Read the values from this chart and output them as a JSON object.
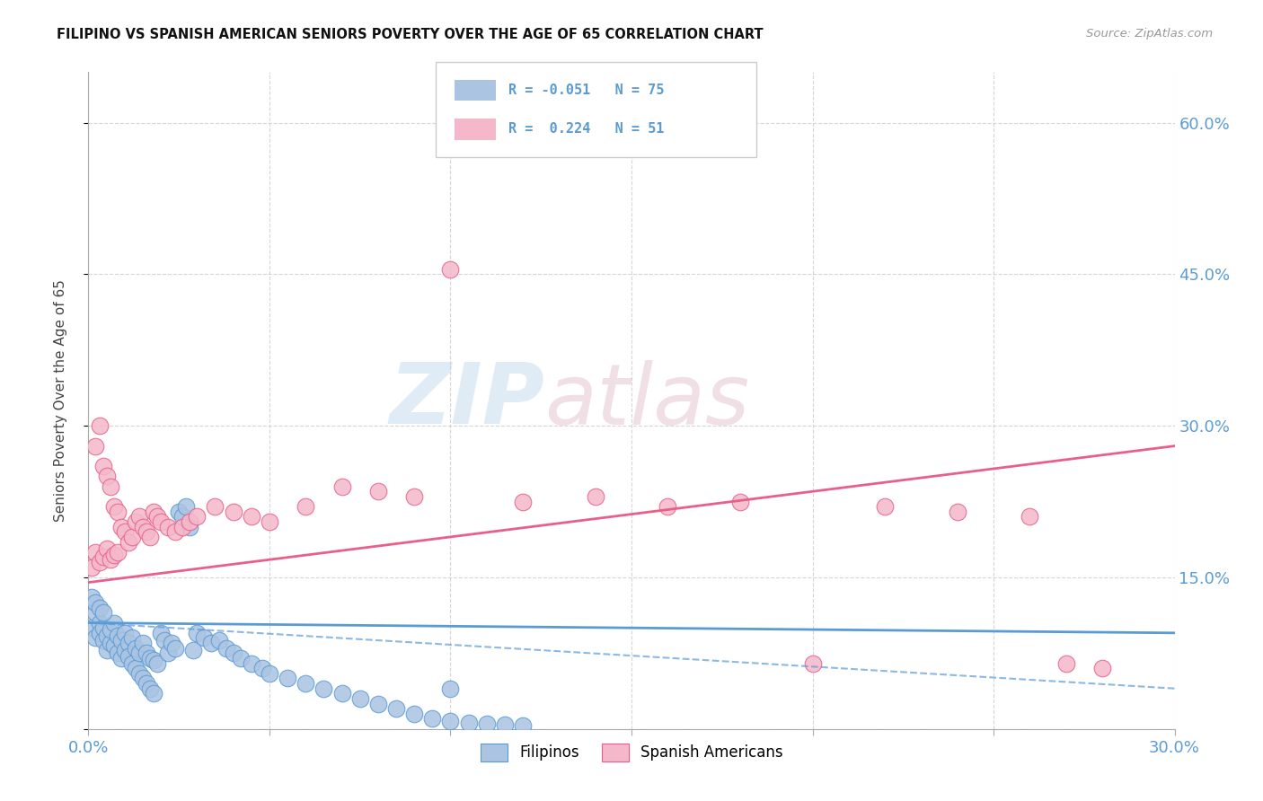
{
  "title": "FILIPINO VS SPANISH AMERICAN SENIORS POVERTY OVER THE AGE OF 65 CORRELATION CHART",
  "source": "Source: ZipAtlas.com",
  "ylabel": "Seniors Poverty Over the Age of 65",
  "xlim": [
    0.0,
    0.3
  ],
  "ylim": [
    0.0,
    0.65
  ],
  "filipino_color": "#aac4e2",
  "filipino_edge": "#5b9bd5",
  "spanish_color": "#f4b8ca",
  "spanish_edge": "#e8608a",
  "trend_filipino_color": "#5b9bd5",
  "trend_spanish_color": "#e8608a",
  "R_filipino": -0.051,
  "N_filipino": 75,
  "R_spanish": 0.224,
  "N_spanish": 51,
  "watermark_zip": "ZIP",
  "watermark_atlas": "atlas",
  "background_color": "#ffffff",
  "grid_color": "#cccccc",
  "axis_label_color": "#5b9bd5",
  "filipinos_x": [
    0.001,
    0.002,
    0.002,
    0.003,
    0.003,
    0.004,
    0.004,
    0.005,
    0.005,
    0.006,
    0.006,
    0.007,
    0.007,
    0.008,
    0.008,
    0.009,
    0.009,
    0.01,
    0.01,
    0.011,
    0.011,
    0.012,
    0.012,
    0.013,
    0.013,
    0.014,
    0.014,
    0.015,
    0.015,
    0.016,
    0.016,
    0.017,
    0.017,
    0.018,
    0.018,
    0.019,
    0.02,
    0.021,
    0.022,
    0.023,
    0.024,
    0.025,
    0.026,
    0.027,
    0.028,
    0.029,
    0.03,
    0.032,
    0.034,
    0.036,
    0.038,
    0.04,
    0.042,
    0.045,
    0.048,
    0.05,
    0.055,
    0.06,
    0.065,
    0.07,
    0.075,
    0.08,
    0.085,
    0.09,
    0.095,
    0.1,
    0.105,
    0.11,
    0.115,
    0.12,
    0.001,
    0.002,
    0.003,
    0.004,
    0.1
  ],
  "filipinos_y": [
    0.1,
    0.09,
    0.115,
    0.105,
    0.095,
    0.088,
    0.1,
    0.092,
    0.078,
    0.085,
    0.098,
    0.105,
    0.082,
    0.092,
    0.075,
    0.088,
    0.07,
    0.095,
    0.078,
    0.085,
    0.072,
    0.09,
    0.065,
    0.08,
    0.06,
    0.075,
    0.055,
    0.085,
    0.05,
    0.075,
    0.045,
    0.07,
    0.04,
    0.068,
    0.035,
    0.065,
    0.095,
    0.088,
    0.075,
    0.085,
    0.08,
    0.215,
    0.21,
    0.22,
    0.2,
    0.078,
    0.095,
    0.09,
    0.085,
    0.088,
    0.08,
    0.075,
    0.07,
    0.065,
    0.06,
    0.055,
    0.05,
    0.045,
    0.04,
    0.035,
    0.03,
    0.025,
    0.02,
    0.015,
    0.01,
    0.008,
    0.006,
    0.005,
    0.004,
    0.003,
    0.13,
    0.125,
    0.12,
    0.115,
    0.04
  ],
  "spanish_x": [
    0.001,
    0.002,
    0.002,
    0.003,
    0.003,
    0.004,
    0.004,
    0.005,
    0.005,
    0.006,
    0.006,
    0.007,
    0.007,
    0.008,
    0.008,
    0.009,
    0.01,
    0.011,
    0.012,
    0.013,
    0.014,
    0.015,
    0.016,
    0.017,
    0.018,
    0.019,
    0.02,
    0.022,
    0.024,
    0.026,
    0.028,
    0.03,
    0.035,
    0.04,
    0.045,
    0.05,
    0.06,
    0.07,
    0.08,
    0.09,
    0.1,
    0.12,
    0.14,
    0.16,
    0.18,
    0.2,
    0.22,
    0.24,
    0.26,
    0.27,
    0.28
  ],
  "spanish_y": [
    0.16,
    0.175,
    0.28,
    0.165,
    0.3,
    0.17,
    0.26,
    0.178,
    0.25,
    0.168,
    0.24,
    0.172,
    0.22,
    0.175,
    0.215,
    0.2,
    0.195,
    0.185,
    0.19,
    0.205,
    0.21,
    0.2,
    0.195,
    0.19,
    0.215,
    0.21,
    0.205,
    0.2,
    0.195,
    0.2,
    0.205,
    0.21,
    0.22,
    0.215,
    0.21,
    0.205,
    0.22,
    0.24,
    0.235,
    0.23,
    0.455,
    0.225,
    0.23,
    0.22,
    0.225,
    0.065,
    0.22,
    0.215,
    0.21,
    0.065,
    0.06
  ]
}
